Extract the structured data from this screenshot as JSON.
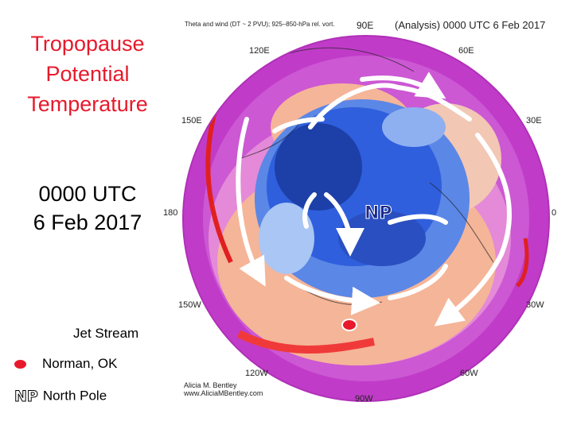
{
  "title_lines": [
    "Tropopause",
    "Potential",
    "Temperature"
  ],
  "time_lines": [
    "0000 UTC",
    "6 Feb 2017"
  ],
  "legend": {
    "jet": "Jet Stream",
    "norman": "Norman, OK",
    "np_glyph": "NP",
    "np": "North Pole"
  },
  "map": {
    "header": "Theta and wind (DT ~ 2 PVU); 925–850-hPa rel. vort.",
    "analysis": "(Analysis) 0000 UTC 6 Feb 2017",
    "pole_label": "NP",
    "longitudes": {
      "e90": "90E",
      "e120": "120E",
      "e60": "60E",
      "e150": "150E",
      "e30": "30E",
      "d180": "180",
      "d0": "0",
      "w150": "150W",
      "w30": "30W",
      "w120": "120W",
      "w60": "60W",
      "w90": "90W"
    },
    "credit_lines": [
      "Alicia M. Bentley",
      "www.AliciaMBentley.com"
    ]
  },
  "colors": {
    "title_red": "#e8192c",
    "outer_magenta": "#c03cc8",
    "warm_orange": "#f5b598",
    "cold_blue": "#2f5fdc",
    "jet_arrow": "#ffffff"
  }
}
